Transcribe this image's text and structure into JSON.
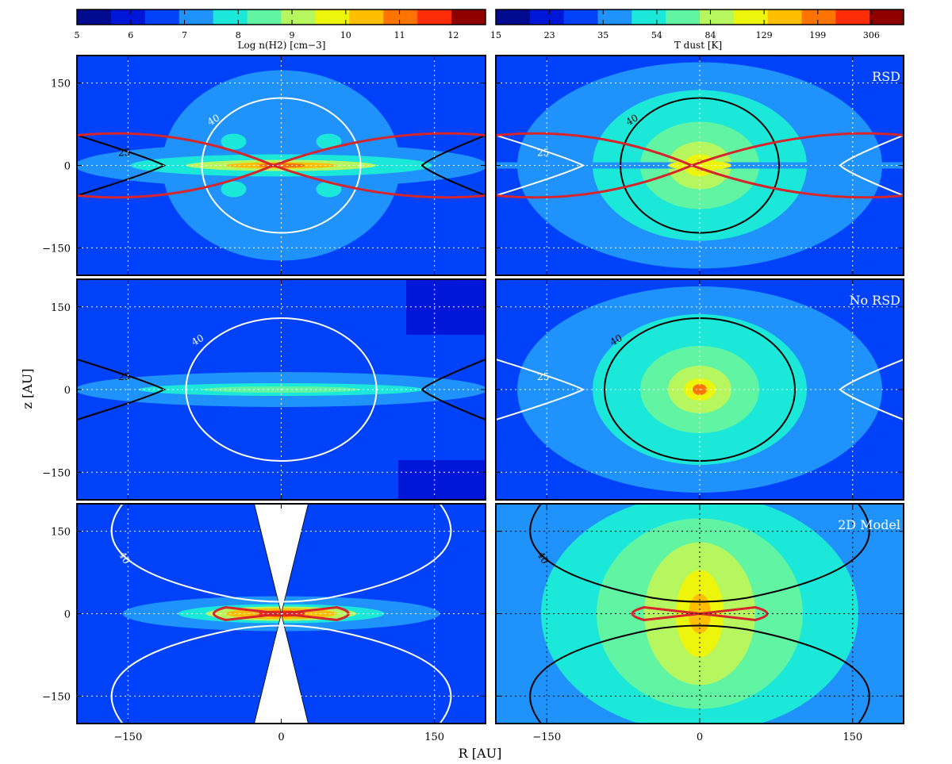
{
  "chart_data": {
    "type": "heatmap",
    "xlabel": "R [AU]",
    "ylabel": "z [AU]",
    "xlim": [
      -200,
      200
    ],
    "ylim": [
      -200,
      200
    ],
    "xticks": [
      -150,
      0,
      150
    ],
    "yticks": [
      -150,
      0,
      150
    ],
    "tick_labels": {
      "-150": "−150",
      "0": "0",
      "150": "150"
    },
    "colorbar_left": {
      "label": "Log n(H2) [cm−3]",
      "tick_labels": [
        "5",
        "6",
        "7",
        "8",
        "9",
        "10",
        "11",
        "12"
      ],
      "colors": [
        "#000b8f",
        "#0017d9",
        "#0041fa",
        "#1f93fb",
        "#1be8d8",
        "#61f4a3",
        "#b6f760",
        "#eef50c",
        "#ffbe00",
        "#ff7400",
        "#ff2c0a",
        "#8e0000"
      ]
    },
    "colorbar_right": {
      "label": "T dust [K]",
      "tick_labels": [
        "15",
        "23",
        "35",
        "54",
        "84",
        "129",
        "199",
        "306"
      ],
      "colors": [
        "#000b8f",
        "#0017d9",
        "#0041fa",
        "#1f93fb",
        "#1be8d8",
        "#61f4a3",
        "#b6f760",
        "#eef50c",
        "#ffbe00",
        "#ff7400",
        "#ff2c0a",
        "#8e0000"
      ]
    },
    "panels": [
      {
        "row": 0,
        "side": "left",
        "quantity": "density",
        "label": "",
        "contour_labels": [
          "40",
          "25"
        ]
      },
      {
        "row": 0,
        "side": "right",
        "quantity": "temperature",
        "label": "RSD",
        "contour_labels": [
          "40",
          "25"
        ]
      },
      {
        "row": 1,
        "side": "left",
        "quantity": "density",
        "label": "",
        "contour_labels": [
          "40",
          "25"
        ]
      },
      {
        "row": 1,
        "side": "right",
        "quantity": "temperature",
        "label": "No RSD",
        "contour_labels": [
          "40",
          "25"
        ]
      },
      {
        "row": 2,
        "side": "left",
        "quantity": "density",
        "label": "",
        "contour_labels": [
          "40"
        ]
      },
      {
        "row": 2,
        "side": "right",
        "quantity": "temperature",
        "label": "2D Model",
        "contour_labels": [
          "40"
        ]
      }
    ]
  }
}
